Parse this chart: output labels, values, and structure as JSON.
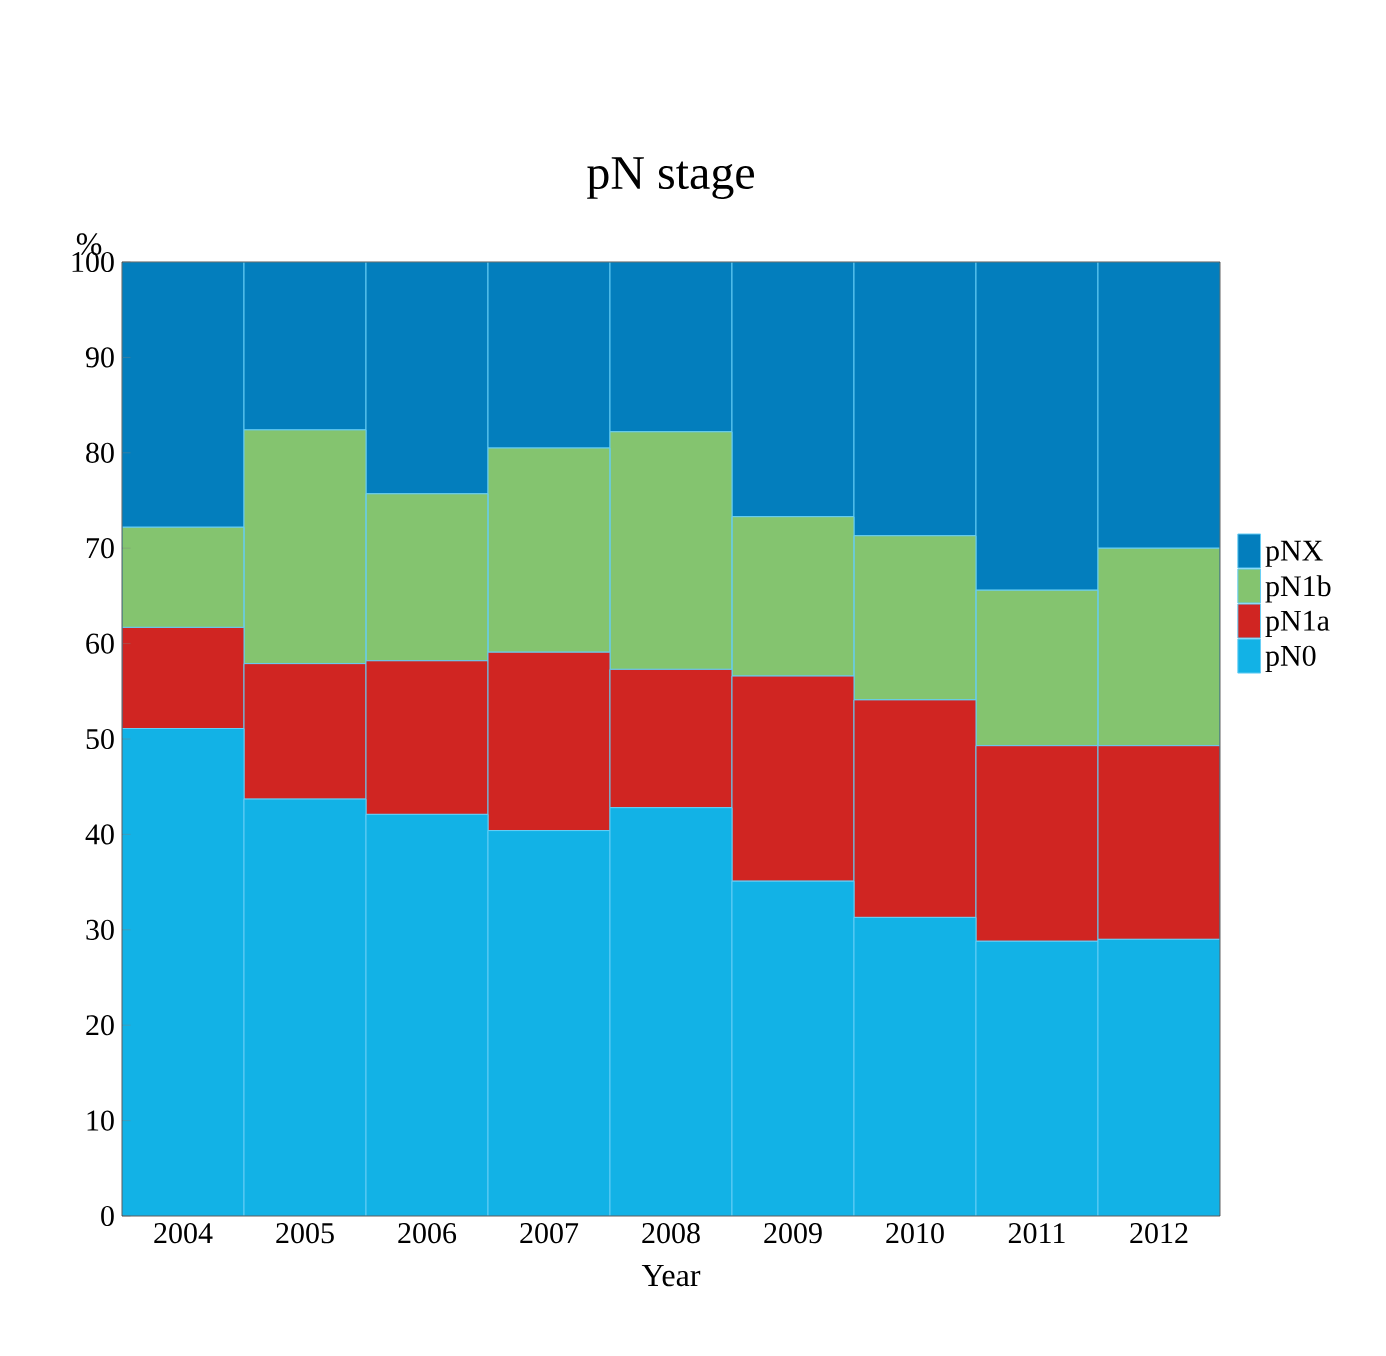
{
  "chart_data": {
    "type": "bar",
    "stacked": true,
    "title": "pN stage",
    "xlabel": "Year",
    "ylabel": "%",
    "categories": [
      "2004",
      "2005",
      "2006",
      "2007",
      "2008",
      "2009",
      "2010",
      "2011",
      "2012"
    ],
    "series": [
      {
        "name": "pN0",
        "color": "#12b2e6",
        "values": [
          51.1,
          43.7,
          42.1,
          40.4,
          42.8,
          35.1,
          31.3,
          28.8,
          29.0
        ]
      },
      {
        "name": "pN1a",
        "color": "#d02522",
        "values": [
          10.6,
          14.2,
          16.1,
          18.7,
          14.5,
          21.5,
          22.8,
          20.5,
          20.3
        ]
      },
      {
        "name": "pN1b",
        "color": "#84c46f",
        "values": [
          10.5,
          24.5,
          17.5,
          21.4,
          24.9,
          16.7,
          17.2,
          16.3,
          20.7
        ]
      },
      {
        "name": "pNX",
        "color": "#037ebd",
        "values": [
          27.8,
          17.6,
          24.3,
          19.5,
          17.8,
          26.7,
          28.7,
          34.4,
          30.0
        ]
      }
    ],
    "ylim": [
      0,
      100
    ],
    "yticks": [
      0,
      10,
      20,
      30,
      40,
      50,
      60,
      70,
      80,
      90,
      100
    ],
    "legend": "right",
    "grid": false
  }
}
